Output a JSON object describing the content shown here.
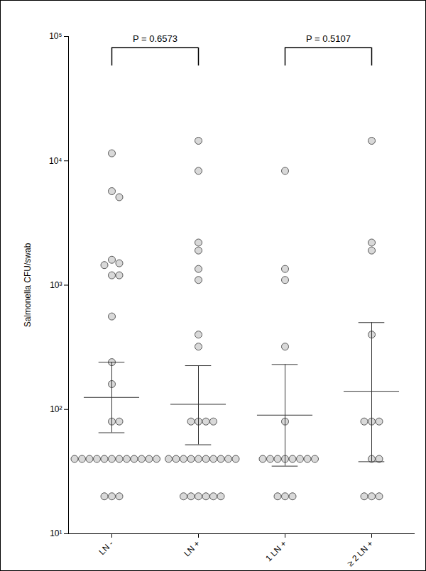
{
  "chart_data": {
    "type": "scatter",
    "y_label": "Salmonella CFU/swab",
    "categories": [
      "LN -",
      "LN +",
      "1 LN +",
      "≥ 2 LN +"
    ],
    "values": [
      [
        11500,
        5700,
        5100,
        1600,
        1500,
        1450,
        1200,
        1200,
        560,
        240,
        160,
        80,
        80,
        40,
        40,
        40,
        40,
        40,
        40,
        40,
        40,
        40,
        40,
        40,
        40,
        20,
        20,
        20
      ],
      [
        14500,
        8300,
        2200,
        1900,
        1350,
        1100,
        400,
        320,
        80,
        80,
        80,
        80,
        40,
        40,
        40,
        40,
        40,
        40,
        40,
        40,
        40,
        40,
        20,
        20,
        20,
        20,
        20,
        20
      ],
      [
        8300,
        1350,
        1100,
        320,
        80,
        40,
        40,
        40,
        40,
        40,
        40,
        40,
        40,
        20,
        20,
        20
      ],
      [
        14500,
        2200,
        1900,
        400,
        80,
        80,
        80,
        40,
        40,
        20,
        20,
        20
      ]
    ],
    "mean": [
      125,
      110,
      90,
      140
    ],
    "ci_low": [
      65,
      52,
      35,
      38
    ],
    "ci_high": [
      240,
      225,
      230,
      500
    ],
    "ylim": [
      10,
      100000
    ],
    "yticks": [
      {
        "value": 10,
        "label": "10¹"
      },
      {
        "value": 100,
        "label": "10²"
      },
      {
        "value": 1000,
        "label": "10³"
      },
      {
        "value": 10000,
        "label": "10⁴"
      },
      {
        "value": 100000,
        "label": "10⁵"
      }
    ],
    "log": "y",
    "marker": "circle",
    "color": "#d9d9d9",
    "comparisons": [
      {
        "groups": [
          "LN -",
          "LN +"
        ],
        "label": "P = 0.6573"
      },
      {
        "groups": [
          "1 LN +",
          "≥ 2 LN +"
        ],
        "label": "P = 0.5107"
      }
    ]
  }
}
